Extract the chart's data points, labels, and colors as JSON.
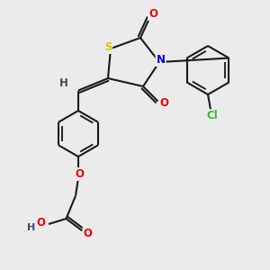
{
  "bg_color": "#ebebeb",
  "bond_color": "#1a1a1a",
  "bond_width": 1.5,
  "atom_colors": {
    "S": "#cccc00",
    "N": "#0000ee",
    "O": "#ee0000",
    "Cl": "#33bb33",
    "H": "#444466",
    "C": "#1a1a1a"
  },
  "font_size": 8.5,
  "fig_size": [
    3.0,
    3.0
  ],
  "dpi": 100
}
